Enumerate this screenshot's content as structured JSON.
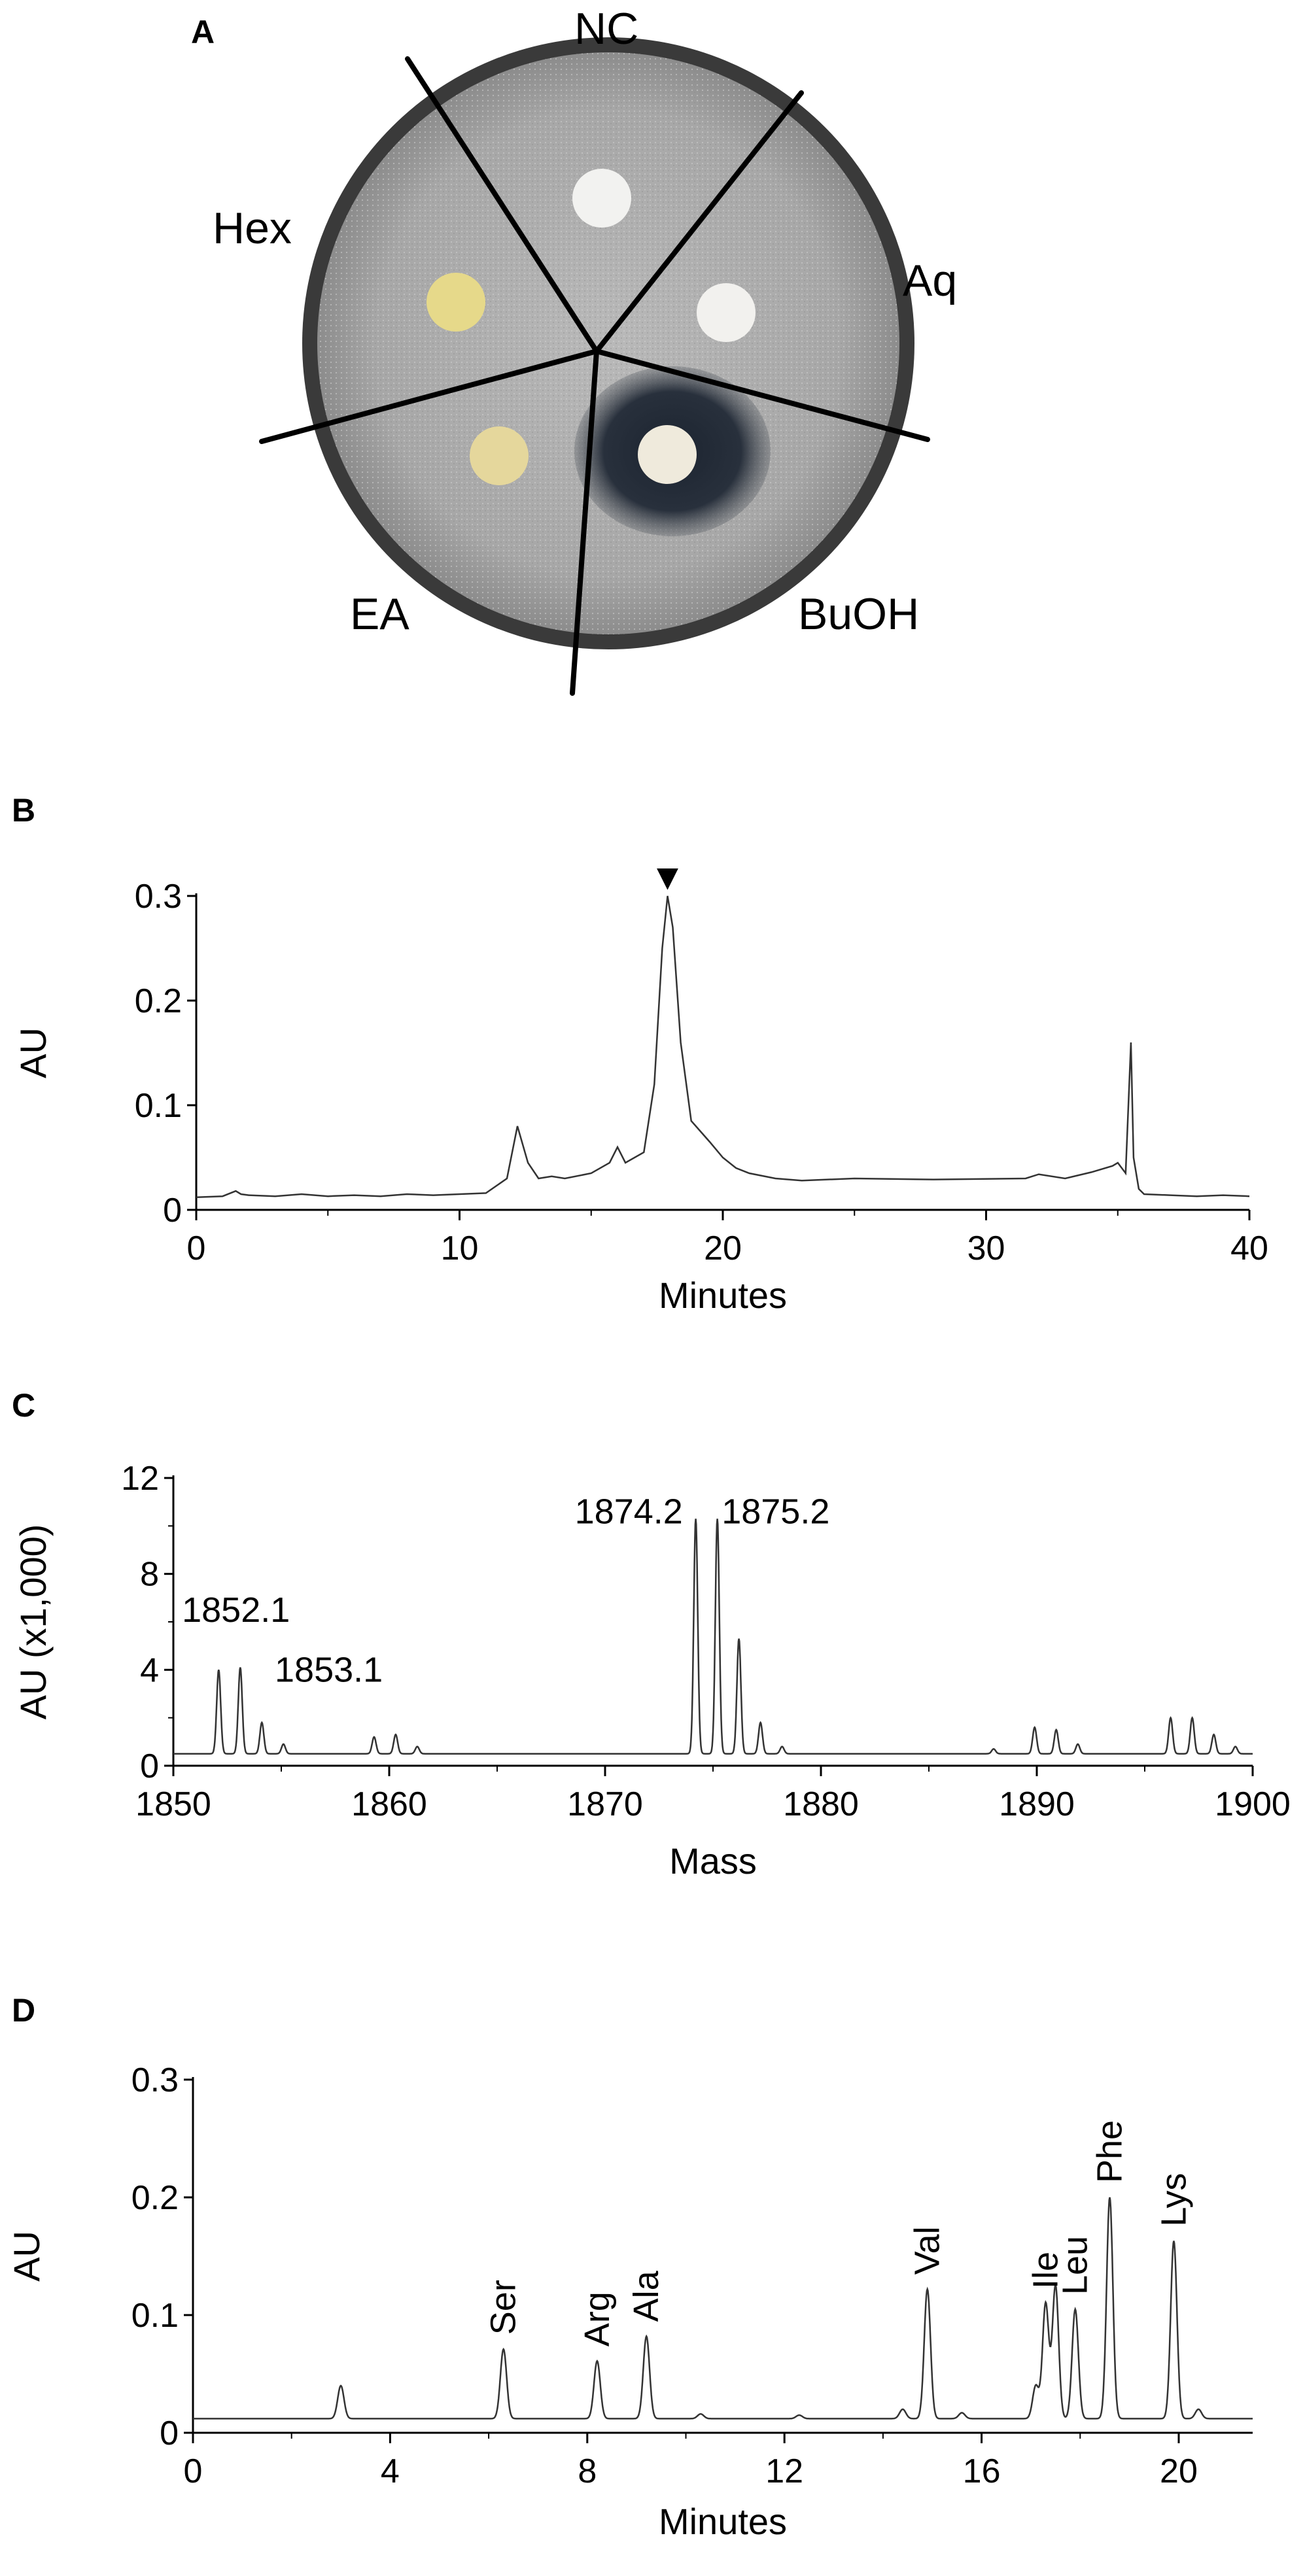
{
  "panels": {
    "a": "A",
    "b": "B",
    "c": "C",
    "d": "D"
  },
  "plate": {
    "labels": {
      "nc": "NC",
      "hex": "Hex",
      "aq": "Aq",
      "ea": "EA",
      "buoh": "BuOH"
    },
    "inhibition_zone": "BuOH"
  },
  "chart_data": [
    {
      "panel": "B",
      "type": "line",
      "xlabel": "Minutes",
      "ylabel": "AU",
      "xlim": [
        0,
        40
      ],
      "ylim": [
        0,
        0.3
      ],
      "xticks": [
        "0",
        "10",
        "20",
        "30",
        "40"
      ],
      "yticks": [
        "0",
        "0.1",
        "0.2",
        "0.3"
      ],
      "annotations": [
        "▼"
      ],
      "x": [
        0,
        1,
        1.5,
        1.7,
        2,
        3,
        4,
        5,
        6,
        7,
        8,
        9,
        10,
        11,
        11.8,
        12.2,
        12.6,
        13,
        13.5,
        14,
        15,
        15.7,
        16,
        16.3,
        17,
        17.4,
        17.7,
        17.9,
        18.1,
        18.4,
        18.8,
        19.5,
        20,
        20.5,
        21,
        22,
        23,
        25,
        28,
        31.5,
        32,
        33,
        34,
        34.8,
        35,
        35.3,
        35.5,
        35.6,
        35.8,
        36,
        37,
        38,
        39,
        40
      ],
      "y": [
        0.012,
        0.013,
        0.018,
        0.015,
        0.014,
        0.013,
        0.015,
        0.013,
        0.014,
        0.013,
        0.015,
        0.014,
        0.015,
        0.016,
        0.03,
        0.08,
        0.045,
        0.03,
        0.032,
        0.03,
        0.035,
        0.045,
        0.06,
        0.045,
        0.055,
        0.12,
        0.25,
        0.3,
        0.27,
        0.16,
        0.085,
        0.065,
        0.05,
        0.04,
        0.035,
        0.03,
        0.028,
        0.03,
        0.029,
        0.03,
        0.034,
        0.03,
        0.036,
        0.042,
        0.045,
        0.035,
        0.16,
        0.05,
        0.02,
        0.015,
        0.014,
        0.013,
        0.014,
        0.013
      ]
    },
    {
      "panel": "C",
      "type": "line",
      "xlabel": "Mass",
      "ylabel": "AU (x1,000)",
      "xlim": [
        1850,
        1900
      ],
      "ylim": [
        0,
        12
      ],
      "xticks": [
        "1850",
        "1860",
        "1870",
        "1880",
        "1890",
        "1900"
      ],
      "yticks": [
        "0",
        "4",
        "8",
        "12"
      ],
      "annotations": [
        "1852.1",
        "1853.1",
        "1874.2",
        "1875.2"
      ],
      "baseline": 0.5,
      "peaks": [
        [
          1852.1,
          4.0
        ],
        [
          1853.1,
          4.1
        ],
        [
          1854.1,
          1.8
        ],
        [
          1855.1,
          0.9
        ],
        [
          1859.3,
          1.2
        ],
        [
          1860.3,
          1.3
        ],
        [
          1861.3,
          0.8
        ],
        [
          1874.2,
          10.3
        ],
        [
          1875.2,
          10.3
        ],
        [
          1876.2,
          5.3
        ],
        [
          1877.2,
          1.8
        ],
        [
          1878.2,
          0.8
        ],
        [
          1888.0,
          0.7
        ],
        [
          1889.9,
          1.6
        ],
        [
          1890.9,
          1.5
        ],
        [
          1891.9,
          0.9
        ],
        [
          1896.2,
          2.0
        ],
        [
          1897.2,
          2.0
        ],
        [
          1898.2,
          1.3
        ],
        [
          1899.2,
          0.8
        ]
      ]
    },
    {
      "panel": "D",
      "type": "line",
      "xlabel": "Minutes",
      "ylabel": "AU",
      "xlim": [
        0,
        21.5
      ],
      "ylim": [
        0,
        0.3
      ],
      "xticks": [
        "0",
        "4",
        "8",
        "12",
        "16",
        "20"
      ],
      "yticks": [
        "0",
        "0.1",
        "0.2",
        "0.3"
      ],
      "annotations": [
        {
          "text": "Ser",
          "x": 6.3
        },
        {
          "text": "Arg",
          "x": 8.2
        },
        {
          "text": "Ala",
          "x": 9.2
        },
        {
          "text": "Val",
          "x": 14.9
        },
        {
          "text": "Ile",
          "x": 17.3
        },
        {
          "text": "Leu",
          "x": 17.9
        },
        {
          "text": "Phe",
          "x": 18.6
        },
        {
          "text": "Lys",
          "x": 19.9
        }
      ],
      "baseline": 0.012,
      "peaks": [
        [
          3.0,
          0.04
        ],
        [
          6.3,
          0.071
        ],
        [
          8.2,
          0.061
        ],
        [
          9.2,
          0.082
        ],
        [
          10.3,
          0.016
        ],
        [
          12.3,
          0.015
        ],
        [
          14.4,
          0.02
        ],
        [
          14.9,
          0.122
        ],
        [
          15.6,
          0.017
        ],
        [
          17.1,
          0.04
        ],
        [
          17.3,
          0.11
        ],
        [
          17.5,
          0.125
        ],
        [
          17.9,
          0.105
        ],
        [
          18.6,
          0.2
        ],
        [
          19.9,
          0.163
        ],
        [
          20.4,
          0.02
        ]
      ]
    }
  ]
}
